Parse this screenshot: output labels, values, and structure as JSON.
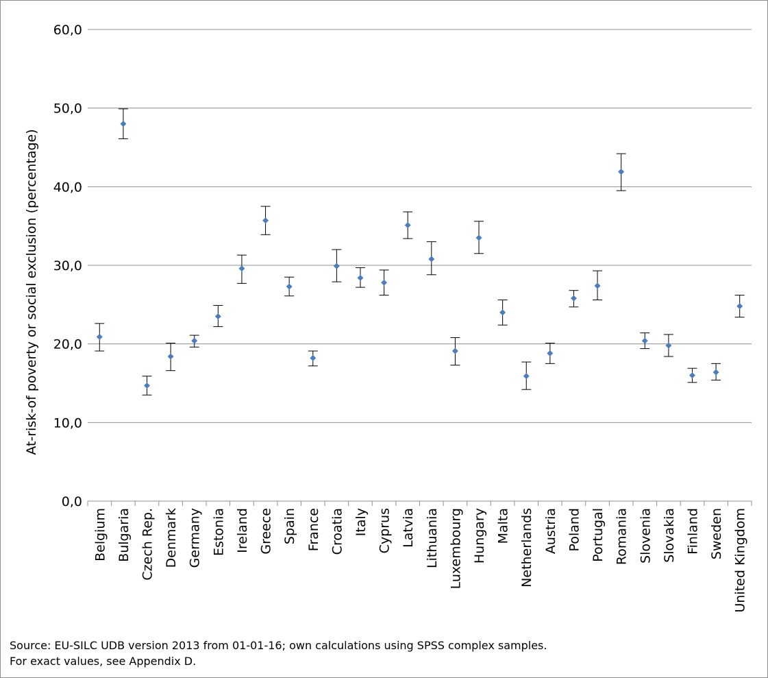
{
  "chart_data": {
    "type": "scatter",
    "ylabel": "At-risk-of poverty or social exclusion  (percentage)",
    "ylim": [
      0,
      60
    ],
    "yticks": [
      "0,0",
      "10,0",
      "20,0",
      "30,0",
      "40,0",
      "50,0",
      "60,0"
    ],
    "grid": true,
    "marker_color": "#4a7ebf",
    "categories": [
      "Belgium",
      "Bulgaria",
      "Czech Rep.",
      "Denmark",
      "Germany",
      "Estonia",
      "Ireland",
      "Greece",
      "Spain",
      "France",
      "Croatia",
      "Italy",
      "Cyprus",
      "Latvia",
      "Lithuania",
      "Luxembourg",
      "Hungary",
      "Malta",
      "Netherlands",
      "Austria",
      "Poland",
      "Portugal",
      "Romania",
      "Slovenia",
      "Slovakia",
      "Finland",
      "Sweden",
      "United Kingdom"
    ],
    "values": [
      20.9,
      48.0,
      14.7,
      18.4,
      20.4,
      23.5,
      29.6,
      35.7,
      27.3,
      18.2,
      29.9,
      28.4,
      27.8,
      35.1,
      30.8,
      19.1,
      33.5,
      24.0,
      15.9,
      18.8,
      25.8,
      27.4,
      41.9,
      20.4,
      19.8,
      16.0,
      16.4,
      24.8
    ],
    "error_low": [
      19.1,
      46.1,
      13.5,
      16.6,
      19.6,
      22.2,
      27.7,
      33.9,
      26.1,
      17.2,
      27.9,
      27.2,
      26.2,
      33.4,
      28.8,
      17.3,
      31.5,
      22.4,
      14.2,
      17.5,
      24.7,
      25.6,
      39.5,
      19.4,
      18.4,
      15.1,
      15.4,
      23.4
    ],
    "error_high": [
      22.6,
      49.9,
      15.9,
      20.1,
      21.1,
      24.9,
      31.3,
      37.5,
      28.5,
      19.1,
      32.0,
      29.7,
      29.4,
      36.8,
      33.0,
      20.8,
      35.6,
      25.6,
      17.7,
      20.1,
      26.8,
      29.3,
      44.2,
      21.4,
      21.2,
      16.9,
      17.5,
      26.2
    ]
  },
  "source": {
    "line1": "Source: EU-SILC UDB version 2013 from 01-01-16; own calculations using SPSS complex samples.",
    "line2": "For exact values, see Appendix D."
  }
}
